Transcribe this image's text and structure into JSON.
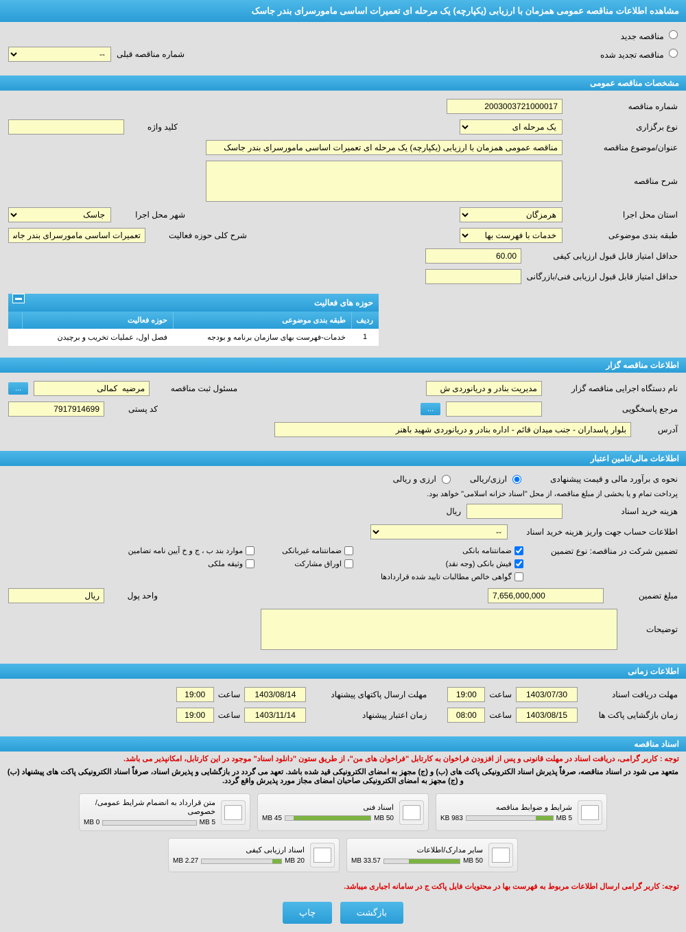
{
  "mainTitle": "مشاهده اطلاعات مناقصه عمومی همزمان با ارزیابی (یکپارچه) یک مرحله ای تعمیرات اساسی مامورسرای بندر جاسک",
  "radios": {
    "new": "مناقصه جدید",
    "renewed": "مناقصه تجدید شده",
    "prevNumberLabel": "شماره مناقصه قبلی",
    "prevNumberValue": "--"
  },
  "sections": {
    "general": "مشخصات مناقصه عمومی",
    "organizer": "اطلاعات مناقصه گزار",
    "financial": "اطلاعات مالی/تامین اعتبار",
    "timing": "اطلاعات زمانی",
    "documents": "اسناد مناقصه"
  },
  "general": {
    "tenderNumberLabel": "شماره مناقصه",
    "tenderNumber": "2003003721000017",
    "holdingTypeLabel": "نوع برگزاری",
    "holdingType": "یک مرحله ای",
    "keywordLabel": "کلید واژه",
    "keyword": "",
    "subjectLabel": "عنوان/موضوع مناقصه",
    "subject": "مناقصه عمومی همزمان با ارزیابی (یکپارچه) یک مرحله ای تعمیرات اساسی مامورسرای بندر جاسک",
    "descLabel": "شرح مناقصه",
    "desc": "",
    "provinceLabel": "استان محل اجرا",
    "province": "هرمزگان",
    "cityLabel": "شهر محل اجرا",
    "city": "جاسک",
    "categoryLabel": "طبقه بندی موضوعی",
    "category": "خدمات با فهرست بها",
    "activityScopeLabel": "شرح کلی حوزه فعالیت",
    "activityScope": "تعمیرات اساسی مامورسرای بندر جاسک",
    "qualityScoreLabel": "حداقل امتیاز قابل قبول ارزیابی کیفی",
    "qualityScore": "60.00",
    "techScoreLabel": "حداقل امتیاز قابل قبول ارزیابی فنی/بازرگانی",
    "techScore": ""
  },
  "activityTable": {
    "title": "حوزه های فعالیت",
    "cols": {
      "row": "ردیف",
      "category": "طبقه بندی موضوعی",
      "scope": "حوزه فعالیت"
    },
    "rows": [
      {
        "num": "1",
        "category": "خدمات-فهرست بهای سازمان برنامه و بودجه",
        "scope": "فصل اول، عملیات تخریب و برچیدن"
      }
    ]
  },
  "organizer": {
    "execLabel": "نام دستگاه اجرایی مناقصه گزار",
    "exec": "مدیریت بنادر و دریانوردی ش",
    "responsibleLabel": "مسئول ثبت مناقصه",
    "responsible": "مرضیه  کمالی",
    "moreBtn": "...",
    "responseLabel": "مرجع پاسخگویی",
    "response": "",
    "postalLabel": "کد پستی",
    "postal": "7917914699",
    "addressLabel": "آدرس",
    "address": "بلوار پاسداران - جنب میدان قائم - اداره بنادر و دریانوردی شهید باهنر"
  },
  "financial": {
    "estimateLabel": "نحوه ی برآورد مالی و قیمت پیشنهادی",
    "opt1": "ارزی/ریالی",
    "opt2": "ارزی و ریالی",
    "paymentNote": "پرداخت تمام و یا بخشی از مبلغ مناقصه، از محل \"اسناد خزانه اسلامی\" خواهد بود.",
    "docCostLabel": "هزینه خرید اسناد",
    "docCost": "",
    "currency": "ریال",
    "accountLabel": "اطلاعات حساب جهت واریز هزینه خرید اسناد",
    "accountValue": "--",
    "guaranteeTypeLabel": "تضمین شرکت در مناقصه:   نوع تضمین",
    "guarantees": {
      "bank": "ضمانتنامه بانکی",
      "nonbank": "ضمانتنامه غیربانکی",
      "regulation": "موارد بند ب ، ج و خ آیین نامه تضامین",
      "bankReceipt": "فیش بانکی (وجه نقد)",
      "securities": "اوراق مشارکت",
      "property": "وثیقه ملکی",
      "receivables": "گواهی خالص مطالبات تایید شده قراردادها"
    },
    "guaranteeAmountLabel": "مبلغ تضمین",
    "guaranteeAmount": "7,656,000,000",
    "unitLabel": "واحد پول",
    "unit": "ریال",
    "notesLabel": "توضیحات",
    "notes": ""
  },
  "timing": {
    "docDeadlineLabel": "مهلت دریافت اسناد",
    "docDeadlineDate": "1403/07/30",
    "docDeadlineTime": "19:00",
    "bidDeadlineLabel": "مهلت ارسال پاکتهای پیشنهاد",
    "bidDeadlineDate": "1403/08/14",
    "bidDeadlineTime": "19:00",
    "openingLabel": "زمان بازگشایی پاکت ها",
    "openingDate": "1403/08/15",
    "openingTime": "08:00",
    "validityLabel": "زمان اعتبار پیشنهاد",
    "validityDate": "1403/11/14",
    "validityTime": "19:00",
    "hourLabel": "ساعت"
  },
  "documents": {
    "notice1": "توجه : کاربر گرامی، دریافت اسناد در مهلت قانونی و پس از افزودن فراخوان به کارتابل \"فراخوان های من\"، از طریق ستون \"دانلود اسناد\" موجود در این کارتابل، امکانپذیر می باشد.",
    "notice2": "متعهد می شود در اسناد مناقصه، صرفاً پذیرش اسناد الکترونیکی پاکت های (ب) و (ج) مجهز به امضای الکترونیکی قید شده باشد. تعهد می گردد در بازگشایی و پذیرش اسناد، صرفاً اسناد الکترونیکی پاکت های پیشنهاد (ب) و (ج) مجهز به امضای الکترونیکی صاحبان امضای مجاز مورد پذیرش واقع گردد.",
    "files": [
      {
        "title": "شرایط و ضوابط مناقصه",
        "used": "983 KB",
        "total": "5 MB",
        "pct": 20
      },
      {
        "title": "اسناد فنی",
        "used": "45 MB",
        "total": "50 MB",
        "pct": 90
      },
      {
        "title": "متن قرارداد به انضمام شرایط عمومی/خصوصی",
        "used": "0 MB",
        "total": "5 MB",
        "pct": 0
      },
      {
        "title": "سایر مدارک/اطلاعات",
        "used": "33.57 MB",
        "total": "50 MB",
        "pct": 67
      },
      {
        "title": "اسناد ارزیابی کیفی",
        "used": "2.27 MB",
        "total": "20 MB",
        "pct": 11
      }
    ],
    "bottomNotice": "توجه: کاربر گرامی ارسال اطلاعات مربوط به فهرست بها در محتویات فایل پاکت ج در سامانه اجباری میباشد."
  },
  "footer": {
    "back": "بازگشت",
    "print": "چاپ"
  }
}
